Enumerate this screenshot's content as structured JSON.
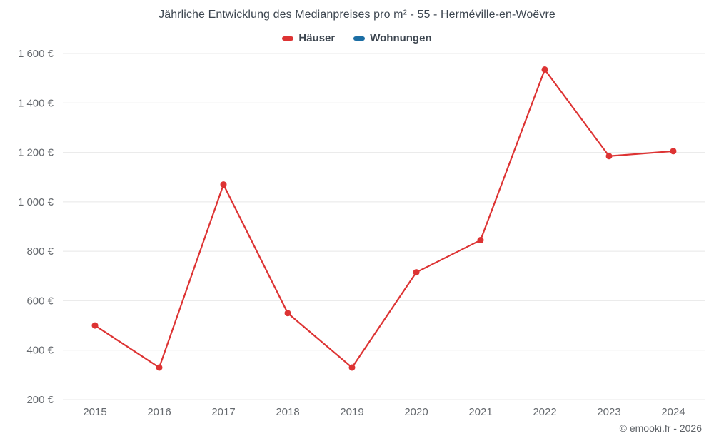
{
  "chart_data": {
    "type": "line",
    "title": "Jährliche Entwicklung des Medianpreises pro m² - 55 - Herméville-en-Woëvre",
    "categories": [
      "2015",
      "2016",
      "2017",
      "2018",
      "2019",
      "2020",
      "2021",
      "2022",
      "2023",
      "2024"
    ],
    "series": [
      {
        "name": "Häuser",
        "color": "#dd3333",
        "values": [
          500,
          330,
          1070,
          550,
          330,
          715,
          845,
          1535,
          1185,
          1205
        ]
      },
      {
        "name": "Wohnungen",
        "color": "#1c6ea4",
        "values": []
      }
    ],
    "ylabel": "",
    "xlabel": "",
    "ylim": [
      200,
      1600
    ],
    "ytick_step": 200,
    "ytick_labels": [
      "200 €",
      "400 €",
      "600 €",
      "800 €",
      "1 000 €",
      "1 200 €",
      "1 400 €",
      "1 600 €"
    ],
    "grid": true,
    "legend_position": "top"
  },
  "footer": {
    "copyright": "© emooki.fr - 2026"
  }
}
